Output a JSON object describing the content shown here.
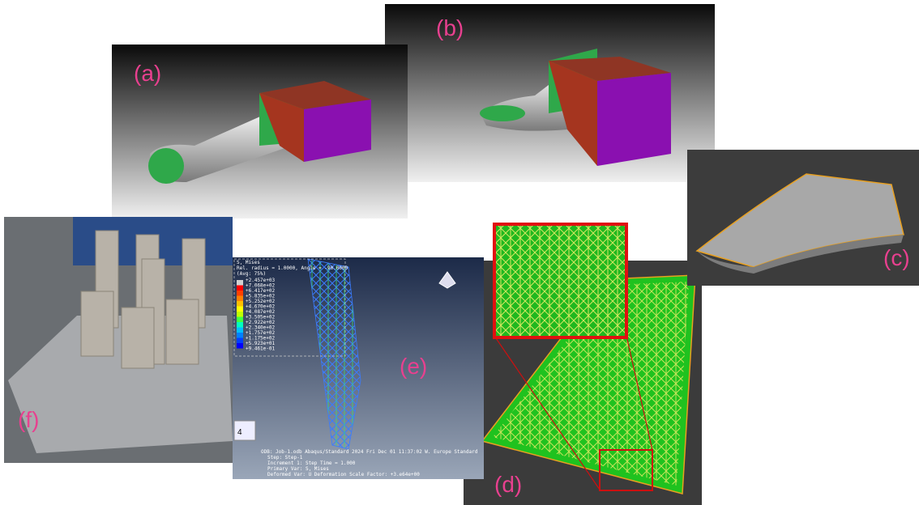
{
  "panels": {
    "a": "(a)",
    "b": "(b)",
    "c": "(c)",
    "d": "(d)",
    "e": "(e)",
    "f": "(f)"
  },
  "fe_legend": {
    "title": "S, Mises",
    "subtitle": "Rel. radius = 1.0000, Angle = -90.0000",
    "avg": "(Avg: 75%)",
    "values": [
      "+2.457e+03",
      "+7.068e+02",
      "+6.417e+02",
      "+5.835e+02",
      "+5.252e+02",
      "+4.670e+02",
      "+4.087e+02",
      "+3.505e+02",
      "+2.922e+02",
      "+2.340e+02",
      "+1.757e+02",
      "+1.175e+02",
      "+5.923e+01",
      "+9.461e-01"
    ]
  },
  "fe_footer": [
    "ODB: Job-1.odb    Abaqus/Standard 2024    Fri Dec 01 11:37:02 W. Europe Standard",
    "Step: Step-1",
    "Increment     1: Step Time =    1.000",
    "Primary Var: S, Mises",
    "Deformed Var: U   Deformation Scale Factor: +3.e64e+00"
  ],
  "fe_view": "4"
}
